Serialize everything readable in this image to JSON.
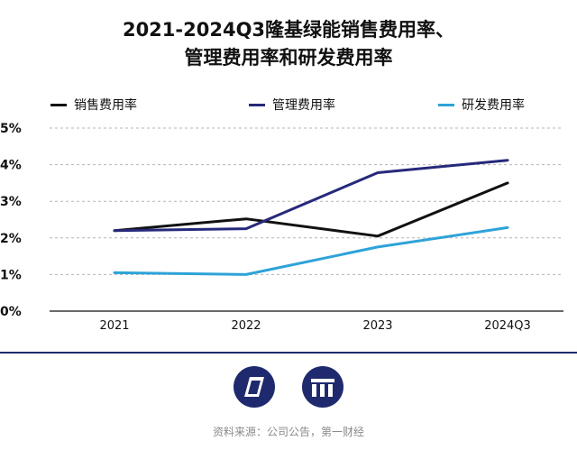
{
  "title_line1": "2021-2024Q3隆基绿能销售费用率、",
  "title_line2": "管理费用率和研发费用率",
  "source": "资料来源：公司公告，第一财经",
  "chart_data": {
    "type": "line",
    "categories": [
      "2021",
      "2022",
      "2023",
      "2024Q3"
    ],
    "y_ticks": [
      "0%",
      "1%",
      "2%",
      "3%",
      "4%",
      "5%"
    ],
    "ylim": [
      0,
      5
    ],
    "grid": true,
    "legend_position": "top",
    "series": [
      {
        "name": "销售费用率",
        "color": "#111111",
        "values": [
          2.2,
          2.52,
          2.05,
          3.5
        ]
      },
      {
        "name": "管理费用率",
        "color": "#26297a",
        "values": [
          2.2,
          2.25,
          3.78,
          4.12
        ]
      },
      {
        "name": "研发费用率",
        "color": "#2ea3d8",
        "values": [
          1.05,
          1.0,
          1.75,
          2.28
        ]
      }
    ]
  }
}
